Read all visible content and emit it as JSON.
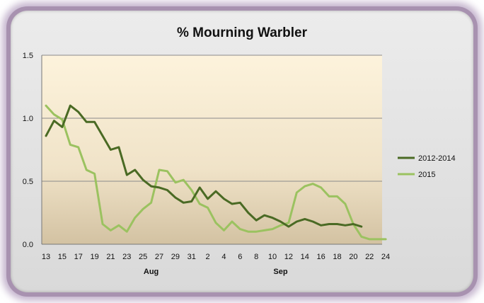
{
  "chart_data": {
    "type": "line",
    "title": "% Mourning Warbler",
    "xlabel": "",
    "ylabel": "",
    "ylim": [
      0,
      1.5
    ],
    "yticks": [
      "0.0",
      "0.5",
      "1.0",
      "1.5"
    ],
    "x_tick_labels": [
      "13",
      "15",
      "17",
      "19",
      "21",
      "23",
      "25",
      "27",
      "29",
      "31",
      "2",
      "4",
      "6",
      "8",
      "10",
      "12",
      "14",
      "16",
      "18",
      "20",
      "22",
      "24"
    ],
    "month_labels": [
      "Aug",
      "Sep"
    ],
    "grid": true,
    "legend_position": "right",
    "colors": {
      "2012-2014": "#4a6a24",
      "2015": "#9bc260"
    },
    "series": [
      {
        "name": "2012-2014",
        "points": [
          [
            0,
            0.86
          ],
          [
            1,
            0.98
          ],
          [
            2,
            0.93
          ],
          [
            3,
            1.1
          ],
          [
            4,
            1.05
          ],
          [
            5,
            0.97
          ],
          [
            6,
            0.97
          ],
          [
            7,
            0.86
          ],
          [
            8,
            0.75
          ],
          [
            9,
            0.77
          ],
          [
            10,
            0.55
          ],
          [
            11,
            0.59
          ],
          [
            12,
            0.51
          ],
          [
            13,
            0.46
          ],
          [
            14,
            0.45
          ],
          [
            15,
            0.43
          ],
          [
            16,
            0.37
          ],
          [
            17,
            0.33
          ],
          [
            18,
            0.34
          ],
          [
            19,
            0.45
          ],
          [
            20,
            0.36
          ],
          [
            21,
            0.42
          ],
          [
            22,
            0.36
          ],
          [
            23,
            0.32
          ],
          [
            24,
            0.33
          ],
          [
            25,
            0.25
          ],
          [
            26,
            0.19
          ],
          [
            27,
            0.23
          ],
          [
            28,
            0.21
          ],
          [
            29,
            0.18
          ],
          [
            30,
            0.14
          ],
          [
            31,
            0.18
          ],
          [
            32,
            0.2
          ],
          [
            33,
            0.18
          ],
          [
            34,
            0.15
          ],
          [
            35,
            0.16
          ],
          [
            36,
            0.16
          ],
          [
            37,
            0.15
          ],
          [
            38,
            0.16
          ],
          [
            39,
            0.14
          ]
        ]
      },
      {
        "name": "2015",
        "points": [
          [
            0,
            1.1
          ],
          [
            1,
            1.03
          ],
          [
            2,
            0.99
          ],
          [
            3,
            0.79
          ],
          [
            4,
            0.77
          ],
          [
            5,
            0.59
          ],
          [
            6,
            0.56
          ],
          [
            7,
            0.16
          ],
          [
            8,
            0.11
          ],
          [
            9,
            0.15
          ],
          [
            10,
            0.1
          ],
          [
            11,
            0.21
          ],
          [
            12,
            0.28
          ],
          [
            13,
            0.33
          ],
          [
            14,
            0.59
          ],
          [
            15,
            0.58
          ],
          [
            16,
            0.49
          ],
          [
            17,
            0.51
          ],
          [
            18,
            0.43
          ],
          [
            19,
            0.32
          ],
          [
            20,
            0.29
          ],
          [
            21,
            0.17
          ],
          [
            22,
            0.11
          ],
          [
            23,
            0.18
          ],
          [
            24,
            0.12
          ],
          [
            25,
            0.1
          ],
          [
            26,
            0.1
          ],
          [
            27,
            0.11
          ],
          [
            28,
            0.12
          ],
          [
            29,
            0.15
          ],
          [
            30,
            0.17
          ],
          [
            31,
            0.41
          ],
          [
            32,
            0.46
          ],
          [
            33,
            0.48
          ],
          [
            34,
            0.45
          ],
          [
            35,
            0.38
          ],
          [
            36,
            0.38
          ],
          [
            37,
            0.32
          ],
          [
            38,
            0.16
          ],
          [
            39,
            0.06
          ],
          [
            40,
            0.04
          ],
          [
            41,
            0.04
          ],
          [
            42,
            0.04
          ]
        ]
      }
    ]
  }
}
